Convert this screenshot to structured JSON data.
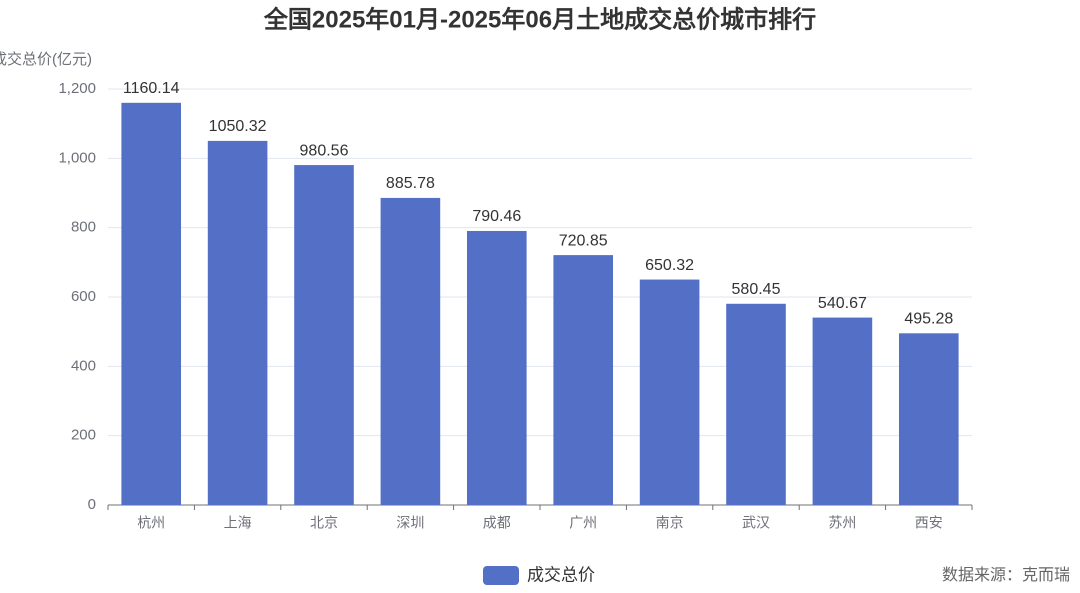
{
  "chart_data": {
    "type": "bar",
    "title": "全国2025年01月-2025年06月土地成交总价城市排行",
    "y_label": "成交总价(亿元)",
    "categories": [
      "杭州",
      "上海",
      "北京",
      "深圳",
      "成都",
      "广州",
      "南京",
      "武汉",
      "苏州",
      "西安"
    ],
    "series": [
      {
        "name": "成交总价",
        "color": "#5470c6",
        "values": [
          1160.14,
          1050.32,
          980.56,
          885.78,
          790.46,
          720.85,
          650.32,
          580.45,
          540.67,
          495.28
        ]
      }
    ],
    "ylim": [
      0,
      1200
    ],
    "yticks": [
      0,
      200,
      400,
      600,
      800,
      {
        "value": 1000,
        "label": "1,000"
      },
      {
        "value": 1200,
        "label": "1,200"
      }
    ],
    "grid": true,
    "legend": "bottom",
    "source": "数据来源：克而瑞"
  }
}
